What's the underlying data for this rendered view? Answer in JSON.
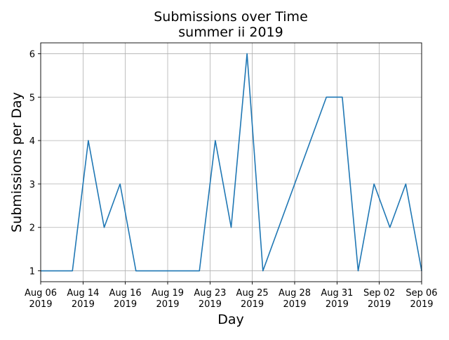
{
  "chart_data": {
    "type": "line",
    "title": "Submissions over Time",
    "subtitle": "summer ii 2019",
    "xlabel": "Day",
    "ylabel": "Submissions per Day",
    "xlim": [
      0,
      24
    ],
    "ylim": [
      0.75,
      6.25
    ],
    "grid": true,
    "line_color": "#1f77b4",
    "y_ticks": [
      1,
      2,
      3,
      4,
      5,
      6
    ],
    "x_ticks": [
      {
        "x": 0,
        "label": [
          "Aug 06",
          "2019"
        ]
      },
      {
        "x": 2.67,
        "label": [
          "Aug 14",
          "2019"
        ]
      },
      {
        "x": 5.33,
        "label": [
          "Aug 16",
          "2019"
        ]
      },
      {
        "x": 8,
        "label": [
          "Aug 19",
          "2019"
        ]
      },
      {
        "x": 10.67,
        "label": [
          "Aug 23",
          "2019"
        ]
      },
      {
        "x": 13.33,
        "label": [
          "Aug 25",
          "2019"
        ]
      },
      {
        "x": 16,
        "label": [
          "Aug 28",
          "2019"
        ]
      },
      {
        "x": 18.67,
        "label": [
          "Aug 31",
          "2019"
        ]
      },
      {
        "x": 21.33,
        "label": [
          "Sep 02",
          "2019"
        ]
      },
      {
        "x": 24,
        "label": [
          "Sep 06",
          "2019"
        ]
      }
    ],
    "x": [
      0,
      1,
      2,
      3,
      4,
      5,
      6,
      7,
      8,
      9,
      10,
      11,
      12,
      13,
      14,
      18,
      19,
      20,
      21,
      22,
      23,
      24
    ],
    "values": [
      1,
      1,
      1,
      4,
      2,
      3,
      1,
      1,
      1,
      1,
      1,
      4,
      2,
      6,
      1,
      5,
      5,
      1,
      3,
      2,
      3,
      1
    ]
  }
}
